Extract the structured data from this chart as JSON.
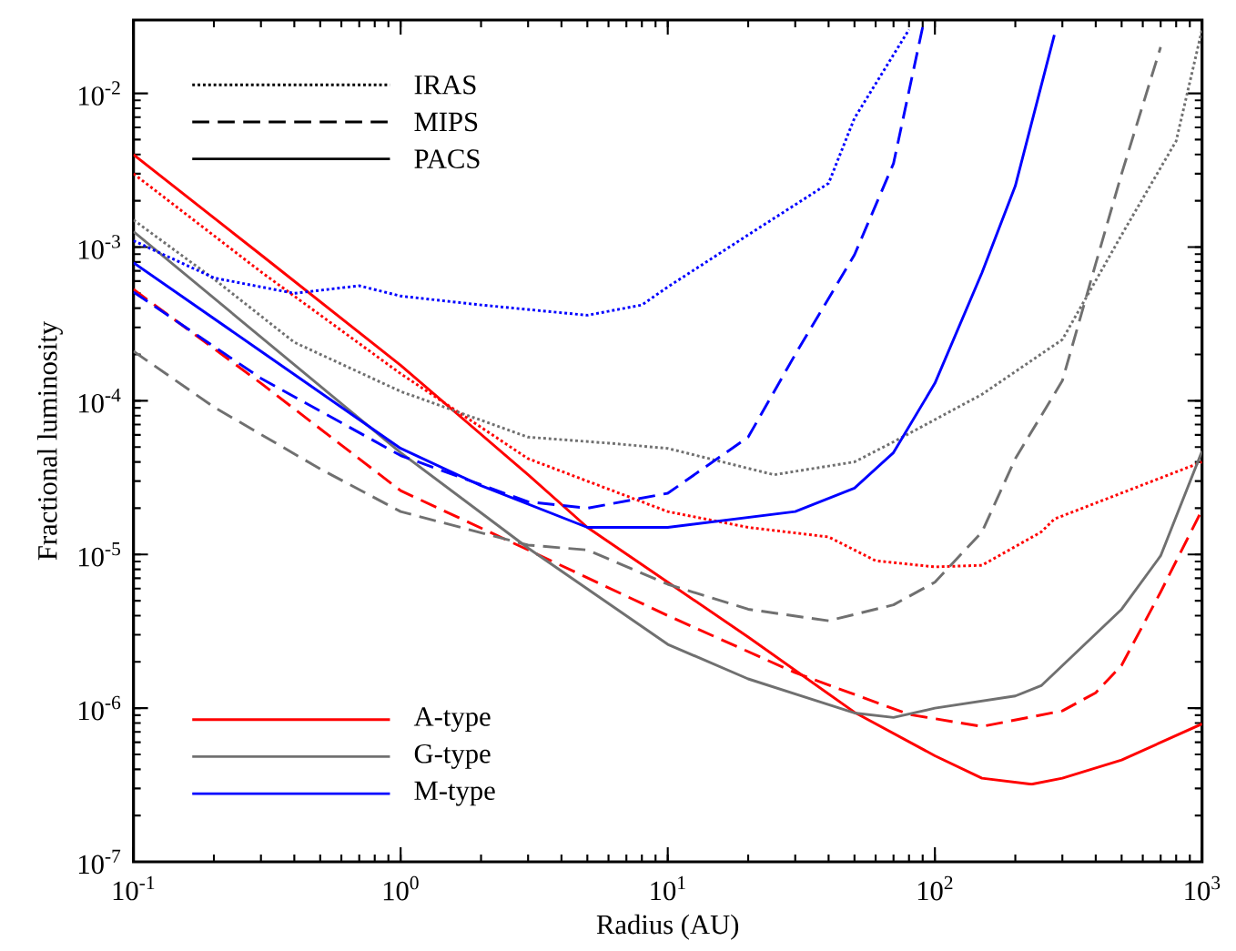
{
  "chart_data": {
    "type": "line",
    "xlabel": "Radius (AU)",
    "ylabel": "Fractional luminosity",
    "log": "xy",
    "xlim": [
      0.1,
      1000
    ],
    "ylim": [
      1e-07,
      0.03
    ],
    "xticks": [
      {
        "value": 0.1,
        "label": "10$^{-1}$"
      },
      {
        "value": 1,
        "label": "10$^{0}$"
      },
      {
        "value": 10,
        "label": "10$^{1}$"
      },
      {
        "value": 100,
        "label": "10$^{2}$"
      },
      {
        "value": 1000,
        "label": "10$^{3}$"
      }
    ],
    "yticks": [
      {
        "value": 1e-07,
        "label": "10$^{-7}$"
      },
      {
        "value": 1e-06,
        "label": "10$^{-6}$"
      },
      {
        "value": 1e-05,
        "label": "10$^{-5}$"
      },
      {
        "value": 0.0001,
        "label": "10$^{-4}$"
      },
      {
        "value": 0.001,
        "label": "10$^{-3}$"
      },
      {
        "value": 0.01,
        "label": "10$^{-2}$"
      }
    ],
    "annotations": [
      "IRAS",
      "MIPS",
      "PACS",
      "A-type",
      "G-type",
      "M-type"
    ],
    "series": [
      {
        "color": "#ff0000",
        "line_style": "dotted",
        "x": [
          0.1,
          0.3,
          1,
          3,
          10,
          20,
          40,
          60,
          100,
          150,
          250,
          280,
          1000
        ],
        "values": [
          0.003,
          0.00069,
          0.00015,
          4.2e-05,
          1.9e-05,
          1.5e-05,
          1.3e-05,
          9.1e-06,
          8.3e-06,
          8.5e-06,
          1.4e-05,
          1.7e-05,
          4e-05
        ]
      },
      {
        "color": "#ff0000",
        "line_style": "dashed",
        "x": [
          0.1,
          0.3,
          1,
          3,
          10,
          30,
          80,
          150,
          300,
          400,
          500,
          700,
          1000
        ],
        "values": [
          0.00053,
          0.00013,
          2.6e-05,
          1.07e-05,
          4e-06,
          1.7e-06,
          9.1e-07,
          7.6e-07,
          9.6e-07,
          1.26e-06,
          1.9e-06,
          5.7e-06,
          1.95e-05
        ]
      },
      {
        "color": "#ff0000",
        "line_style": "solid",
        "x": [
          0.1,
          0.3,
          1,
          3,
          5,
          10,
          20,
          50,
          100,
          150,
          230,
          300,
          500,
          1000
        ],
        "values": [
          0.004,
          0.00089,
          0.00017,
          3.3e-05,
          1.5e-05,
          6.6e-06,
          2.9e-06,
          9.4e-07,
          4.9e-07,
          3.5e-07,
          3.2e-07,
          3.5e-07,
          4.6e-07,
          7.9e-07
        ]
      },
      {
        "color": "#707070",
        "line_style": "dotted",
        "x": [
          0.1,
          0.2,
          0.4,
          1,
          3,
          6,
          10,
          25,
          50,
          70,
          150,
          300,
          500,
          800,
          1000
        ],
        "values": [
          0.0015,
          0.00062,
          0.00024,
          0.000115,
          5.8e-05,
          5.3e-05,
          4.9e-05,
          3.3e-05,
          4e-05,
          5.4e-05,
          0.00011,
          0.00025,
          0.0012,
          0.0049,
          0.026
        ]
      },
      {
        "color": "#707070",
        "line_style": "dashed",
        "x": [
          0.1,
          0.2,
          0.5,
          1,
          3,
          5,
          10,
          20,
          40,
          70,
          100,
          150,
          200,
          300,
          400,
          500,
          700
        ],
        "values": [
          0.00021,
          9.1e-05,
          3.6e-05,
          1.9e-05,
          1.15e-05,
          1.07e-05,
          6.4e-06,
          4.4e-06,
          3.7e-06,
          4.7e-06,
          6.6e-06,
          1.4e-05,
          4.2e-05,
          0.000135,
          0.00078,
          0.003,
          0.02
        ]
      },
      {
        "color": "#707070",
        "line_style": "solid",
        "x": [
          0.1,
          1,
          3,
          10,
          20,
          50,
          70,
          100,
          200,
          250,
          500,
          700,
          1000
        ],
        "values": [
          0.00126,
          4.6e-05,
          1.1e-05,
          2.6e-06,
          1.55e-06,
          9.3e-07,
          8.7e-07,
          1e-06,
          1.2e-06,
          1.4e-06,
          4.4e-06,
          9.8e-06,
          4.7e-05
        ]
      },
      {
        "color": "#0000ff",
        "line_style": "dotted",
        "x": [
          0.1,
          0.2,
          0.4,
          0.7,
          1,
          2,
          5,
          8,
          10,
          20,
          40,
          50,
          80
        ],
        "values": [
          0.0011,
          0.00063,
          0.0005,
          0.00056,
          0.00048,
          0.00042,
          0.00036,
          0.00042,
          0.00055,
          0.0012,
          0.0026,
          0.0069,
          0.026
        ]
      },
      {
        "color": "#0000ff",
        "line_style": "dashed",
        "x": [
          0.1,
          0.3,
          1,
          3,
          5,
          10,
          20,
          30,
          50,
          70,
          90
        ],
        "values": [
          0.00051,
          0.00014,
          4.4e-05,
          2.2e-05,
          2e-05,
          2.5e-05,
          5.8e-05,
          0.0002,
          0.00089,
          0.0035,
          0.027
        ]
      },
      {
        "color": "#0000ff",
        "line_style": "solid",
        "x": [
          0.1,
          0.3,
          1,
          2,
          5,
          10,
          30,
          50,
          70,
          100,
          150,
          200,
          280
        ],
        "values": [
          0.00079,
          0.00021,
          4.9e-05,
          2.8e-05,
          1.5e-05,
          1.5e-05,
          1.9e-05,
          2.7e-05,
          4.6e-05,
          0.00013,
          0.00068,
          0.0025,
          0.024
        ]
      }
    ]
  }
}
